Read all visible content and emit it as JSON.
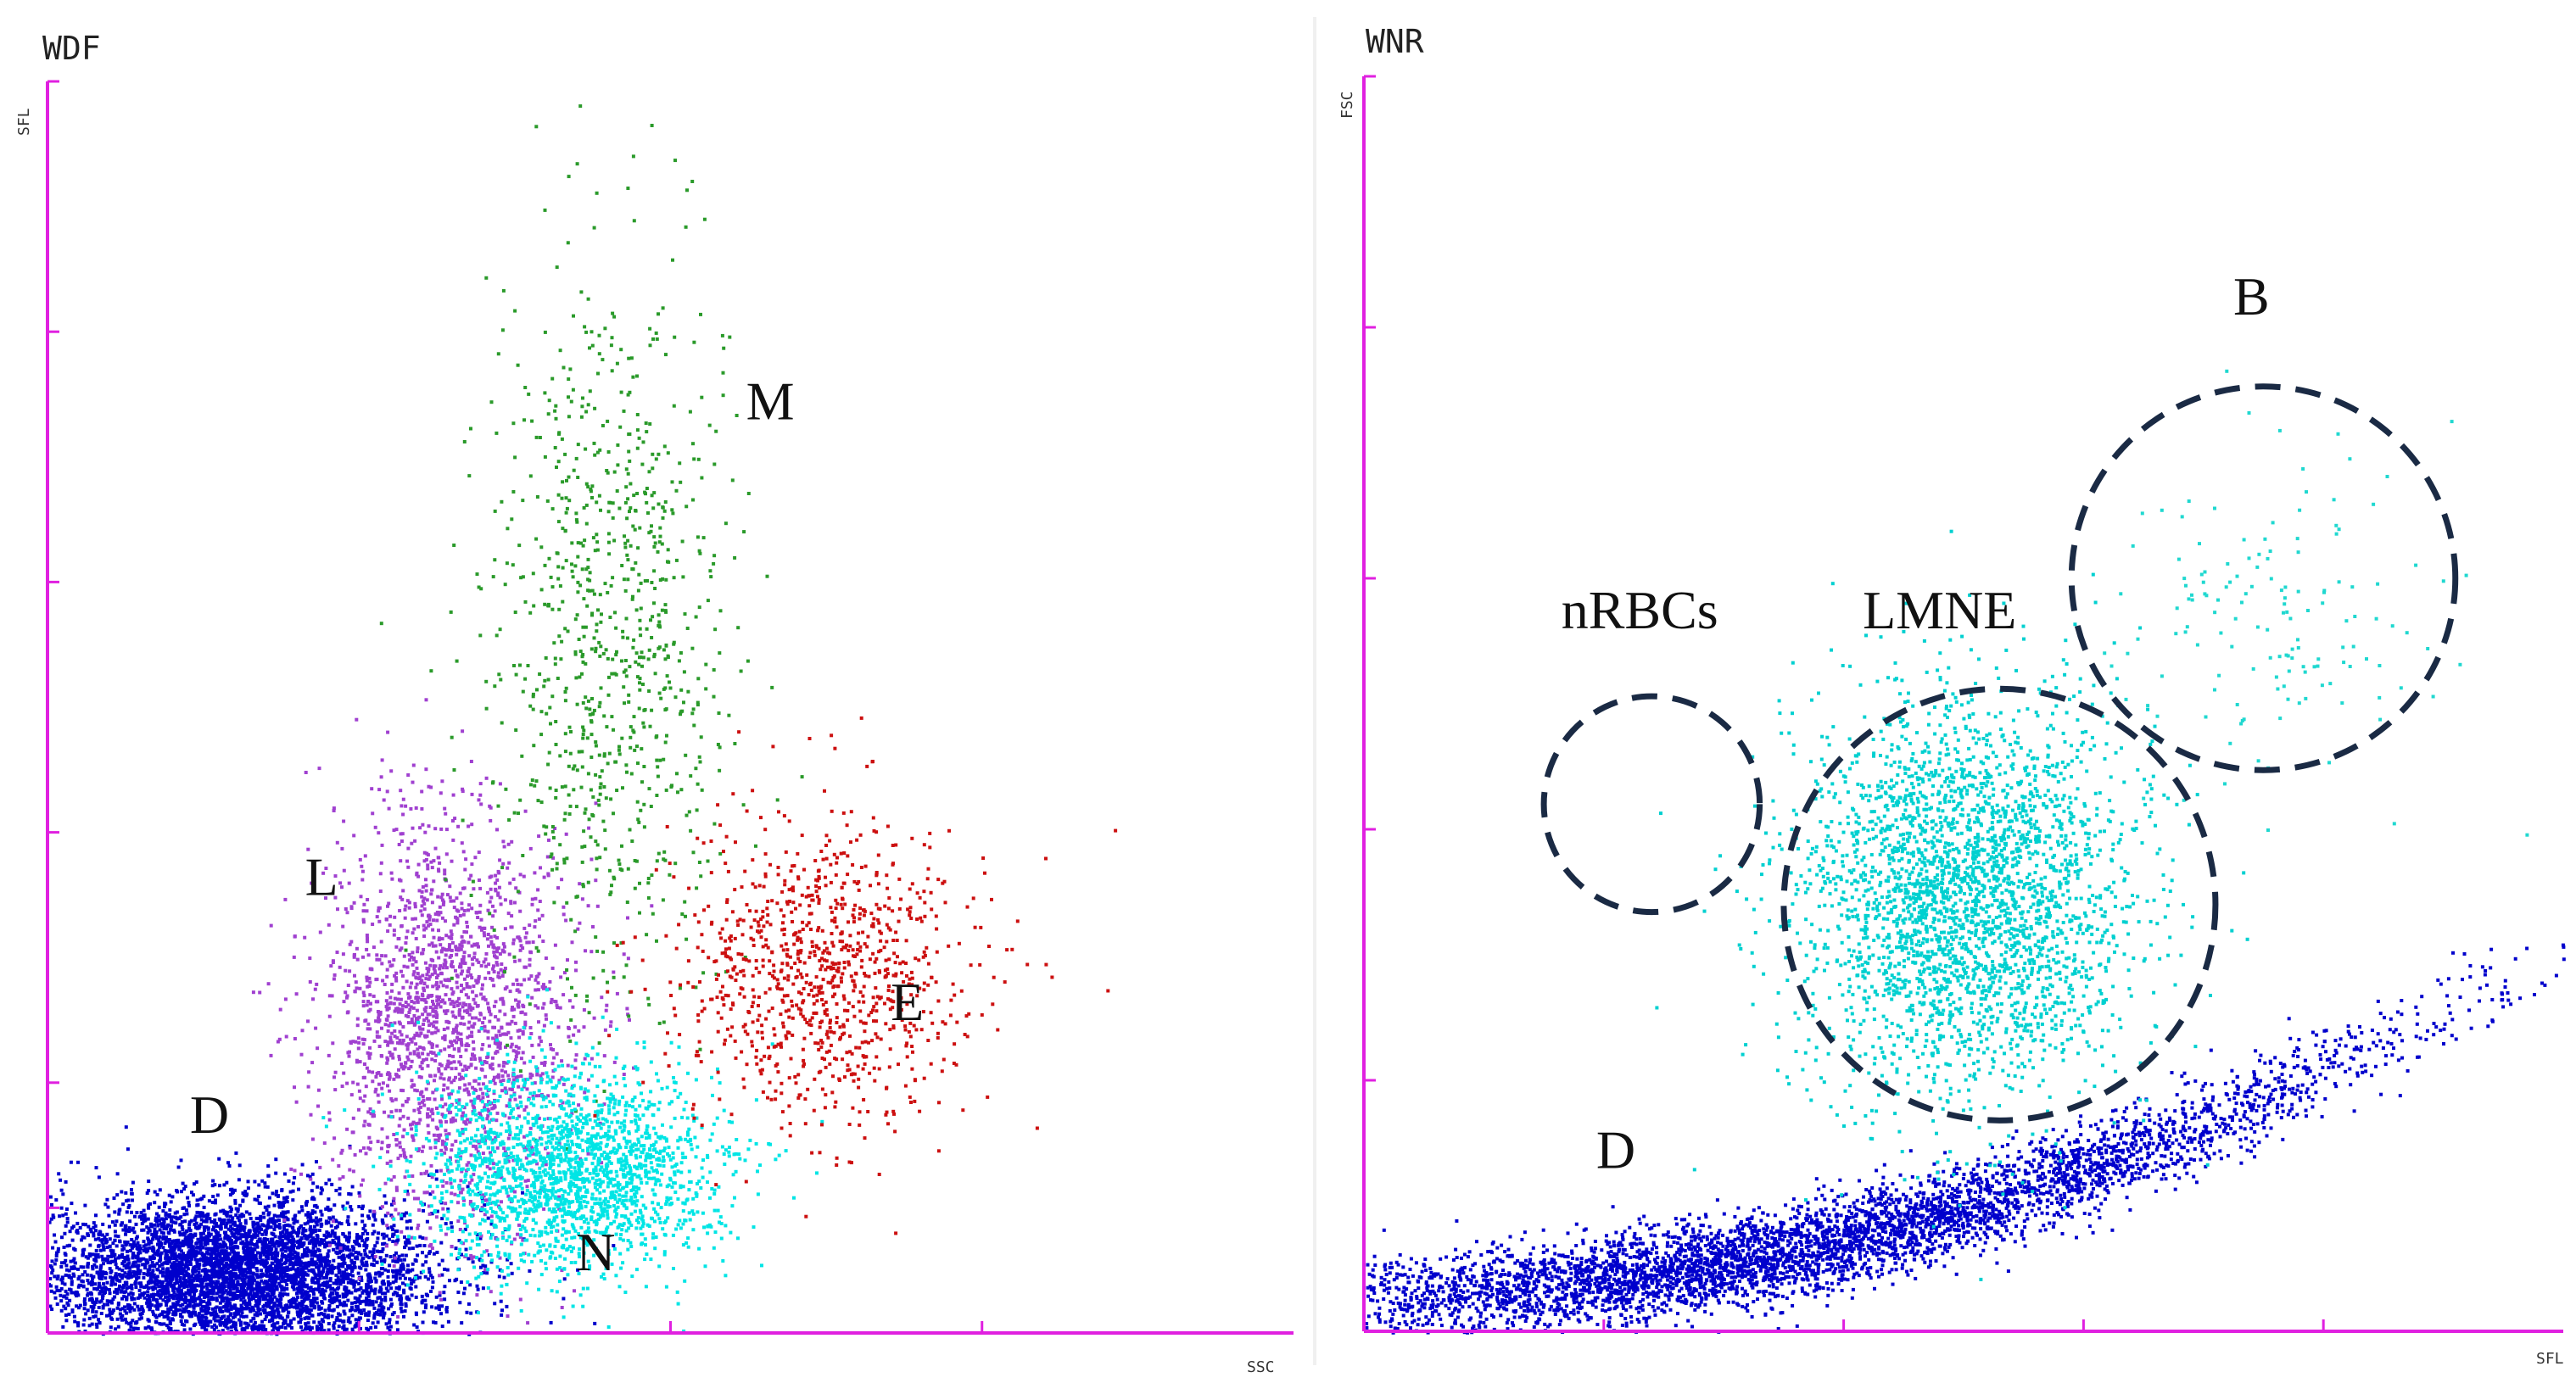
{
  "chart_data": [
    {
      "type": "scatter",
      "title": "WDF",
      "xlabel": "SSC",
      "ylabel": "SFL",
      "xlim": [
        0,
        100
      ],
      "ylim": [
        0,
        100
      ],
      "axis_color": "#e020e0",
      "xticks": [
        25,
        50,
        75
      ],
      "yticks": [
        10,
        20,
        40,
        60,
        80,
        100
      ],
      "populations": [
        {
          "label": "D",
          "color": "#0000cc",
          "center": [
            15,
            5
          ],
          "spread": [
            8,
            3
          ],
          "count": 5000,
          "label_pos": [
            13,
            16
          ]
        },
        {
          "label": "L",
          "color": "#a040d0",
          "center": [
            32,
            25
          ],
          "spread": [
            5,
            8
          ],
          "count": 2000,
          "label_pos": [
            22,
            35
          ]
        },
        {
          "label": "M",
          "color": "#2a9a2a",
          "center": [
            45,
            55
          ],
          "spread": [
            5,
            15
          ],
          "count": 900,
          "label_pos": [
            58,
            73
          ]
        },
        {
          "label": "N",
          "color": "#00e5e5",
          "center": [
            42,
            13
          ],
          "spread": [
            6,
            4
          ],
          "count": 2000,
          "label_pos": [
            44,
            5
          ]
        },
        {
          "label": "E",
          "color": "#cc1010",
          "center": [
            62,
            29
          ],
          "spread": [
            6,
            6
          ],
          "count": 1000,
          "label_pos": [
            69,
            25
          ]
        }
      ]
    },
    {
      "type": "scatter",
      "title": "WNR",
      "xlabel": "SFL",
      "ylabel": "FSC",
      "xlim": [
        0,
        100
      ],
      "ylim": [
        0,
        100
      ],
      "axis_color": "#e020e0",
      "xticks": [
        20,
        40,
        60,
        80
      ],
      "yticks": [
        20,
        40,
        60,
        80,
        100
      ],
      "populations": [
        {
          "label": "D",
          "color": "#0000cc",
          "center": [
            35,
            5
          ],
          "spread": [
            25,
            3
          ],
          "count": 5000,
          "label_pos": [
            21,
            13
          ]
        },
        {
          "label": "LMNE",
          "color": "#00d0d0",
          "center": [
            50,
            35
          ],
          "spread": [
            7,
            8
          ],
          "count": 3000,
          "label_pos": [
            48,
            56
          ]
        },
        {
          "label": "B",
          "color": "#20d8d0",
          "center": [
            76,
            57
          ],
          "spread": [
            7,
            7
          ],
          "count": 150,
          "label_pos": [
            74,
            81
          ]
        }
      ],
      "gates": [
        {
          "label": "nRBCs",
          "cx": 24,
          "cy": 42,
          "r": 9,
          "label_pos": [
            23,
            56
          ]
        },
        {
          "label": "LMNE",
          "cx": 53,
          "cy": 34,
          "r": 18,
          "label_pos": [
            48,
            56
          ]
        },
        {
          "label": "B",
          "cx": 75,
          "cy": 60,
          "r": 16,
          "label_pos": [
            74,
            81
          ]
        }
      ],
      "gate_color": "#1a2a44"
    }
  ]
}
